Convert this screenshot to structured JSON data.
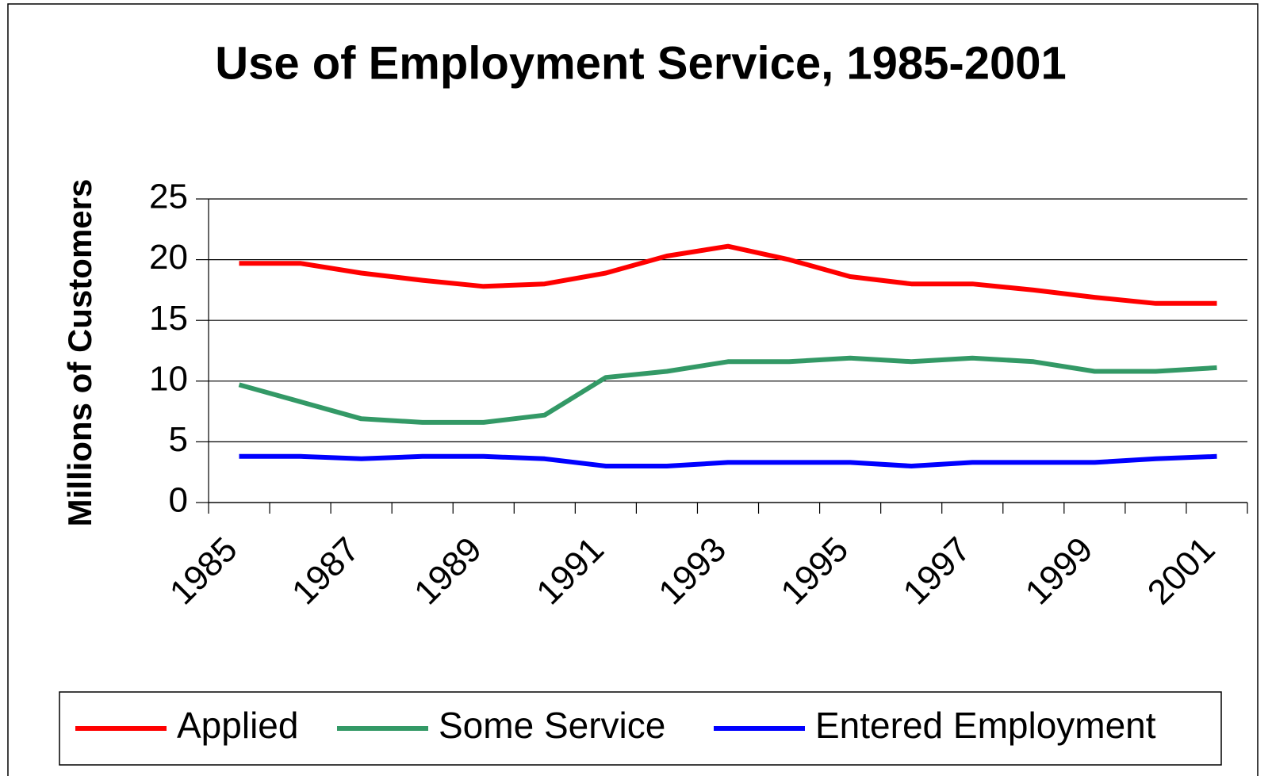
{
  "chart_data": {
    "type": "line",
    "title": "Use of Employment Service, 1985-2001",
    "y_label": "Millions of Customers",
    "categories": [
      "1985",
      null,
      "1987",
      null,
      "1989",
      null,
      "1991",
      null,
      "1993",
      null,
      "1995",
      null,
      "1997",
      null,
      "1999",
      null,
      "2001"
    ],
    "series": [
      {
        "name": "Applied",
        "color": "#ff0000",
        "values": [
          19.7,
          19.7,
          18.9,
          18.3,
          17.8,
          18.0,
          18.9,
          20.3,
          21.1,
          20.0,
          18.6,
          18.0,
          18.0,
          17.5,
          16.9,
          16.4,
          16.4
        ]
      },
      {
        "name": "Some Service",
        "color": "#339966",
        "values": [
          9.7,
          8.3,
          6.9,
          6.6,
          6.6,
          7.2,
          10.3,
          10.8,
          11.6,
          11.6,
          11.9,
          11.6,
          11.9,
          11.6,
          10.8,
          10.8,
          11.1
        ]
      },
      {
        "name": "Entered Employment",
        "color": "#0000ff",
        "values": [
          3.8,
          3.8,
          3.6,
          3.8,
          3.8,
          3.6,
          3.0,
          3.0,
          3.3,
          3.3,
          3.3,
          3.0,
          3.3,
          3.3,
          3.3,
          3.6,
          3.8
        ]
      }
    ],
    "ylim": [
      0,
      25
    ],
    "yticks": [
      0,
      5,
      10,
      15,
      20,
      25
    ],
    "grid": true,
    "legend": "bottom"
  }
}
